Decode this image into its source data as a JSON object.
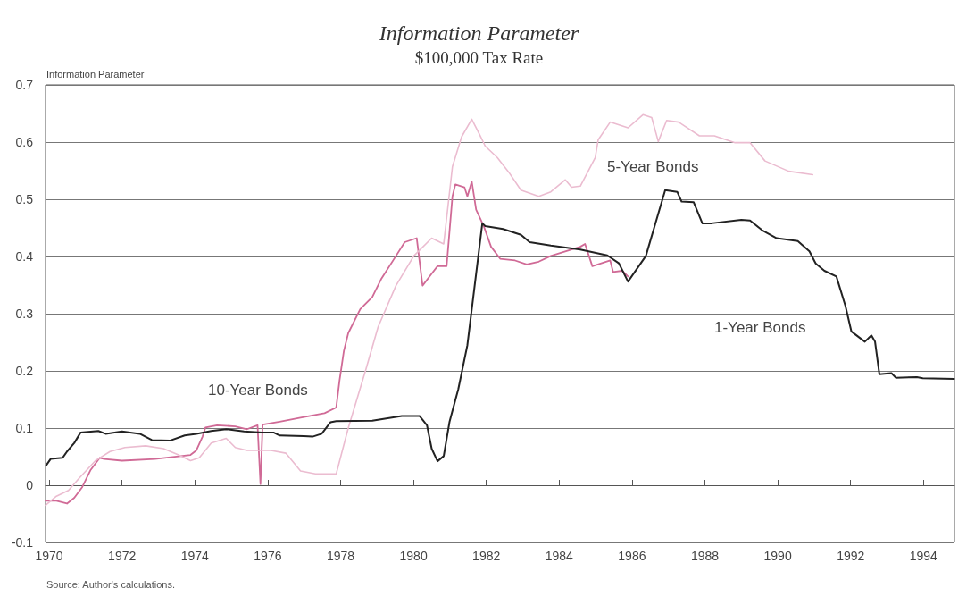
{
  "chart_data": {
    "type": "line",
    "title": "Information Parameter",
    "subtitle": "$100,000 Tax Rate",
    "ylabel": "Information Parameter",
    "annotations": [
      "Source: Author's calculations."
    ],
    "xlim": [
      1969.9,
      1994.85
    ],
    "xticks": [
      1970,
      1972,
      1974,
      1976,
      1978,
      1980,
      1982,
      1984,
      1986,
      1988,
      1990,
      1992,
      1994
    ],
    "ylim": [
      -0.1,
      0.7
    ],
    "yticks": [
      -0.1,
      0,
      0.1,
      0.2,
      0.3,
      0.4,
      0.5,
      0.6,
      0.7
    ],
    "grid": "y",
    "legend": false,
    "marker": "none",
    "line_style": "solid",
    "series": [
      {
        "name": "1-Year Bonds",
        "color": "#222222",
        "x": [
          1969.92,
          1970.04,
          1970.37,
          1970.49,
          1970.69,
          1970.86,
          1971.35,
          1971.55,
          1972.0,
          1972.49,
          1972.82,
          1973.31,
          1973.72,
          1974.04,
          1974.45,
          1974.86,
          1975.35,
          1975.84,
          1976.17,
          1976.33,
          1976.99,
          1977.23,
          1977.48,
          1977.72,
          1977.88,
          1978.87,
          1979.68,
          1980.17,
          1980.37,
          1980.5,
          1980.66,
          1980.83,
          1980.99,
          1981.23,
          1981.48,
          1981.68,
          1981.89,
          1981.97,
          1982.46,
          1982.95,
          1983.19,
          1983.77,
          1984.58,
          1985.32,
          1985.64,
          1985.89,
          1986.38,
          1986.91,
          1987.24,
          1987.36,
          1987.69,
          1987.93,
          1988.18,
          1989.0,
          1989.24,
          1989.57,
          1989.97,
          1990.55,
          1990.87,
          1991.04,
          1991.28,
          1991.61,
          1991.86,
          1992.02,
          1992.39,
          1992.57,
          1992.67,
          1992.79,
          1993.12,
          1993.24,
          1993.82,
          1993.98,
          1994.84
        ],
        "values": [
          0.035,
          0.046,
          0.048,
          0.059,
          0.074,
          0.092,
          0.095,
          0.09,
          0.094,
          0.09,
          0.079,
          0.078,
          0.087,
          0.09,
          0.095,
          0.098,
          0.094,
          0.092,
          0.092,
          0.087,
          0.086,
          0.085,
          0.09,
          0.11,
          0.112,
          0.113,
          0.121,
          0.121,
          0.105,
          0.064,
          0.042,
          0.051,
          0.111,
          0.168,
          0.245,
          0.349,
          0.458,
          0.453,
          0.448,
          0.438,
          0.425,
          0.419,
          0.412,
          0.402,
          0.388,
          0.356,
          0.401,
          0.516,
          0.513,
          0.496,
          0.495,
          0.458,
          0.458,
          0.464,
          0.463,
          0.446,
          0.432,
          0.427,
          0.409,
          0.388,
          0.375,
          0.365,
          0.313,
          0.269,
          0.251,
          0.262,
          0.251,
          0.194,
          0.196,
          0.188,
          0.189,
          0.187,
          0.186
        ]
      },
      {
        "name": "5-Year Bonds",
        "color": "#ebbcd0",
        "x": [
          1969.9,
          1970.2,
          1970.53,
          1970.82,
          1971.27,
          1971.67,
          1972.08,
          1972.65,
          1973.14,
          1973.55,
          1973.88,
          1974.12,
          1974.45,
          1974.86,
          1975.11,
          1975.43,
          1976.09,
          1976.5,
          1976.9,
          1977.31,
          1977.88,
          1978.21,
          1978.7,
          1979.03,
          1979.52,
          1980.01,
          1980.5,
          1980.83,
          1981.07,
          1981.32,
          1981.6,
          1981.81,
          1981.97,
          1982.3,
          1982.62,
          1982.95,
          1983.44,
          1983.77,
          1984.17,
          1984.34,
          1984.58,
          1984.99,
          1985.07,
          1985.4,
          1985.89,
          1986.3,
          1986.54,
          1986.72,
          1986.95,
          1987.28,
          1987.85,
          1988.26,
          1988.83,
          1989.24,
          1989.65,
          1990.3,
          1990.96
        ],
        "values": [
          -0.035,
          -0.019,
          -0.009,
          0.012,
          0.043,
          0.059,
          0.066,
          0.069,
          0.064,
          0.053,
          0.043,
          0.048,
          0.074,
          0.082,
          0.066,
          0.061,
          0.061,
          0.056,
          0.025,
          0.02,
          0.02,
          0.1,
          0.204,
          0.277,
          0.349,
          0.401,
          0.432,
          0.422,
          0.557,
          0.609,
          0.64,
          0.614,
          0.593,
          0.573,
          0.547,
          0.516,
          0.505,
          0.513,
          0.534,
          0.521,
          0.523,
          0.573,
          0.604,
          0.635,
          0.625,
          0.648,
          0.643,
          0.601,
          0.638,
          0.635,
          0.611,
          0.611,
          0.599,
          0.599,
          0.567,
          0.549,
          0.543
        ]
      },
      {
        "name": "10-Year Bonds",
        "color": "#d06a96",
        "x": [
          1969.9,
          1970.2,
          1970.49,
          1970.69,
          1970.9,
          1971.14,
          1971.39,
          1971.51,
          1972.0,
          1972.9,
          1973.88,
          1974.04,
          1974.21,
          1974.29,
          1974.61,
          1975.11,
          1975.43,
          1975.72,
          1975.8,
          1975.86,
          1976.33,
          1976.9,
          1977.56,
          1977.88,
          1977.97,
          1978.09,
          1978.21,
          1978.54,
          1978.87,
          1979.11,
          1979.52,
          1979.76,
          1980.09,
          1980.25,
          1980.5,
          1980.66,
          1980.91,
          1981.07,
          1981.15,
          1981.4,
          1981.48,
          1981.6,
          1981.72,
          1981.93,
          1982.13,
          1982.38,
          1982.79,
          1983.11,
          1983.44,
          1983.77,
          1984.58,
          1984.71,
          1984.91,
          1985.4,
          1985.48,
          1985.73,
          1985.89
        ],
        "values": [
          -0.027,
          -0.027,
          -0.032,
          -0.022,
          -0.004,
          0.027,
          0.048,
          0.046,
          0.043,
          0.046,
          0.053,
          0.061,
          0.085,
          0.101,
          0.105,
          0.103,
          0.098,
          0.105,
          0.002,
          0.106,
          0.111,
          0.118,
          0.126,
          0.136,
          0.183,
          0.235,
          0.266,
          0.308,
          0.329,
          0.36,
          0.401,
          0.425,
          0.432,
          0.349,
          0.37,
          0.383,
          0.383,
          0.505,
          0.526,
          0.521,
          0.505,
          0.531,
          0.482,
          0.453,
          0.417,
          0.396,
          0.393,
          0.386,
          0.391,
          0.401,
          0.417,
          0.422,
          0.383,
          0.393,
          0.373,
          0.375,
          0.365
        ]
      }
    ]
  }
}
